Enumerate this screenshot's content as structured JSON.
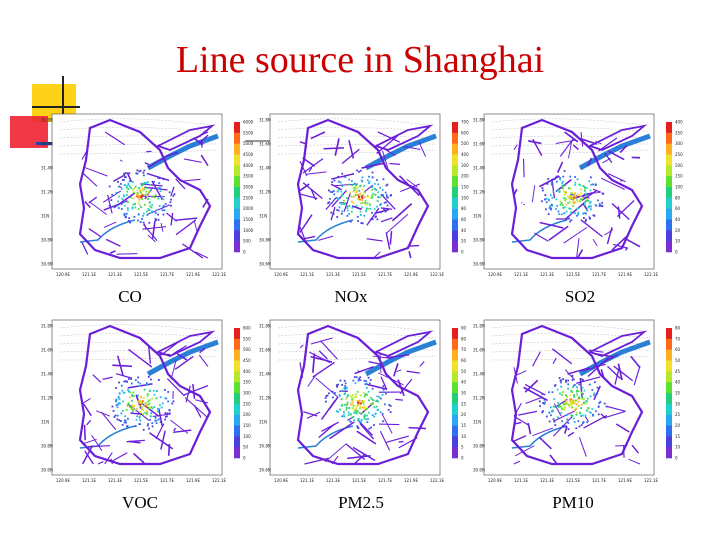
{
  "slide_title": "Line source in Shanghai",
  "colors": {
    "title": "#cc0000",
    "road": "#6a1ed8",
    "river": "#2a7fd6",
    "accent_yellow": "#ffd21a",
    "accent_red": "#ee2233",
    "accent_blue": "#2244aa"
  },
  "colorbar_palette": [
    "#7a2fd0",
    "#4b3fe0",
    "#2f6ff0",
    "#2aa9f0",
    "#22d0d0",
    "#22d07a",
    "#5de030",
    "#b8e82a",
    "#f2e12a",
    "#ffb020",
    "#ff6a1a",
    "#e61e1e"
  ],
  "panels": [
    {
      "id": "co",
      "caption": "CO",
      "lat_ticks": [
        "31.8N",
        "31.6N",
        "31.4N",
        "31.2N",
        "31N",
        "30.8N",
        "30.6N"
      ],
      "lon_ticks": [
        "120.9E",
        "121.1E",
        "121.3E",
        "121.5E",
        "121.7E",
        "121.9E",
        "122.1E"
      ],
      "colorbar_ticks": [
        "6000",
        "5500",
        "5000",
        "4500",
        "4000",
        "3500",
        "3000",
        "2500",
        "2000",
        "1500",
        "1000",
        "500",
        "0"
      ]
    },
    {
      "id": "nox",
      "caption": "NOx",
      "lat_ticks": [
        "31.8N",
        "31.6N",
        "31.4N",
        "31.2N",
        "31N",
        "30.8N",
        "30.6N"
      ],
      "lon_ticks": [
        "120.9E",
        "121.1E",
        "121.3E",
        "121.5E",
        "121.7E",
        "121.9E",
        "122.1E"
      ],
      "colorbar_ticks": [
        "700",
        "600",
        "500",
        "400",
        "300",
        "200",
        "150",
        "100",
        "80",
        "60",
        "40",
        "20",
        "0"
      ]
    },
    {
      "id": "so2",
      "caption": "SO2",
      "lat_ticks": [
        "31.8N",
        "31.6N",
        "31.4N",
        "31.2N",
        "31N",
        "30.8N",
        "30.6N"
      ],
      "lon_ticks": [
        "120.9E",
        "121.1E",
        "121.3E",
        "121.5E",
        "121.7E",
        "121.9E",
        "122.1E"
      ],
      "colorbar_ticks": [
        "400",
        "350",
        "300",
        "250",
        "200",
        "150",
        "100",
        "80",
        "60",
        "40",
        "20",
        "10",
        "0"
      ]
    },
    {
      "id": "voc",
      "caption": "VOC",
      "lat_ticks": [
        "31.8N",
        "31.6N",
        "31.4N",
        "31.2N",
        "31N",
        "30.8N",
        "30.6N"
      ],
      "lon_ticks": [
        "120.9E",
        "121.1E",
        "121.3E",
        "121.5E",
        "121.7E",
        "121.9E",
        "122.1E"
      ],
      "colorbar_ticks": [
        "600",
        "550",
        "500",
        "450",
        "400",
        "350",
        "300",
        "250",
        "200",
        "150",
        "100",
        "50",
        "0"
      ]
    },
    {
      "id": "pm25",
      "caption": "PM2.5",
      "lat_ticks": [
        "31.8N",
        "31.6N",
        "31.4N",
        "31.2N",
        "31N",
        "30.8N",
        "30.6N"
      ],
      "lon_ticks": [
        "120.9E",
        "121.1E",
        "121.3E",
        "121.5E",
        "121.7E",
        "121.9E",
        "122.1E"
      ],
      "colorbar_ticks": [
        "90",
        "80",
        "70",
        "60",
        "50",
        "40",
        "30",
        "25",
        "20",
        "15",
        "10",
        "5",
        "0"
      ]
    },
    {
      "id": "pm10",
      "caption": "PM10",
      "lat_ticks": [
        "31.8N",
        "31.6N",
        "31.4N",
        "31.2N",
        "31N",
        "30.8N",
        "30.6N"
      ],
      "lon_ticks": [
        "120.9E",
        "121.1E",
        "121.3E",
        "121.5E",
        "121.7E",
        "121.9E",
        "122.1E"
      ],
      "colorbar_ticks": [
        "80",
        "70",
        "60",
        "50",
        "45",
        "40",
        "35",
        "30",
        "25",
        "20",
        "15",
        "10",
        "0"
      ]
    }
  ]
}
